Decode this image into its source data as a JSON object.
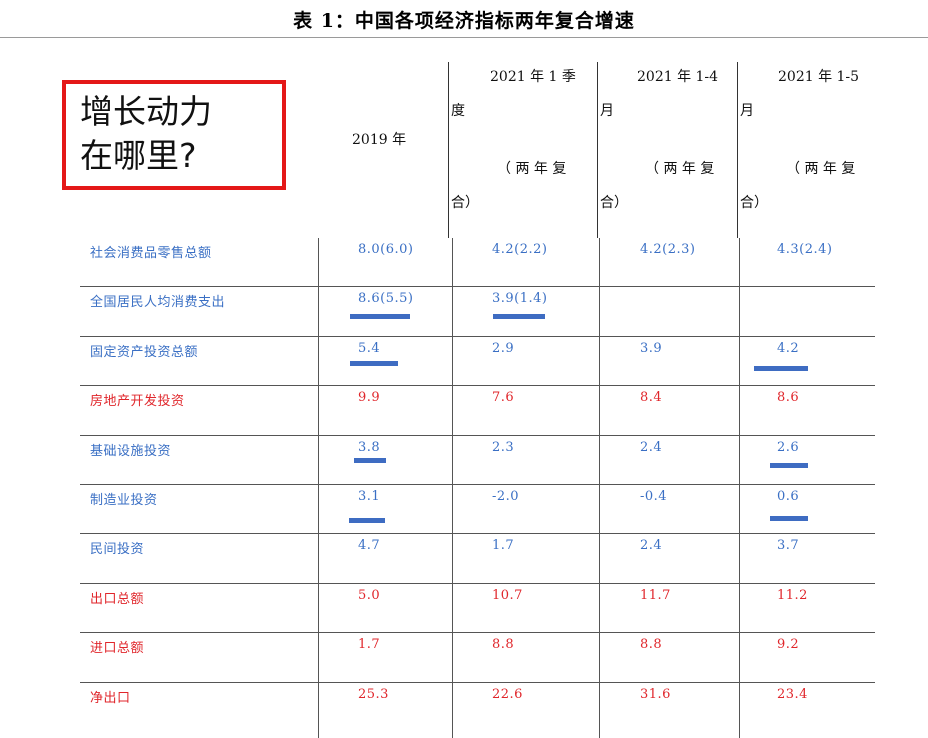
{
  "title": "表 1：中国各项经济指标两年复合增速",
  "callout": {
    "line1": "增长动力",
    "line2": "在哪里?"
  },
  "columns": {
    "c2019": "2019 年",
    "q1": {
      "l1": "2021 年 1 季",
      "l2": "度",
      "l3": "（ 两 年 复",
      "l4": "合）"
    },
    "m14": {
      "l1": "2021 年 1-4",
      "l2": "月",
      "l3": "（ 两 年 复",
      "l4": "合）"
    },
    "m15": {
      "l1": "2021 年 1-5",
      "l2": "月",
      "l3": "（ 两 年 复",
      "l4": "合）"
    }
  },
  "rows": [
    {
      "label": "社会消费品零售总额",
      "color": "#3a6fc4",
      "v2019": "8.0(6.0)",
      "q1": "4.2(2.2)",
      "m14": "4.2(2.3)",
      "m15": "4.3(2.4)"
    },
    {
      "label": "全国居民人均消费支出",
      "color": "#3a6fc4",
      "v2019": "8.6(5.5)",
      "q1": "3.9(1.4)",
      "m14": "",
      "m15": ""
    },
    {
      "label": "固定资产投资总额",
      "color": "#3a6fc4",
      "v2019": "5.4",
      "q1": "2.9",
      "m14": "3.9",
      "m15": "4.2"
    },
    {
      "label": "房地产开发投资",
      "color": "#e0262b",
      "v2019": "9.9",
      "q1": "7.6",
      "m14": "8.4",
      "m15": "8.6"
    },
    {
      "label": "基础设施投资",
      "color": "#3a6fc4",
      "v2019": "3.8",
      "q1": "2.3",
      "m14": "2.4",
      "m15": "2.6"
    },
    {
      "label": "制造业投资",
      "color": "#3a6fc4",
      "v2019": "3.1",
      "q1": "-2.0",
      "m14": "-0.4",
      "m15": "0.6"
    },
    {
      "label": "民间投资",
      "color": "#3a6fc4",
      "v2019": "4.7",
      "q1": "1.7",
      "m14": "2.4",
      "m15": "3.7"
    },
    {
      "label": "出口总额",
      "color": "#e0262b",
      "v2019": "5.0",
      "q1": "10.7",
      "m14": "11.7",
      "m15": "11.2"
    },
    {
      "label": "进口总额",
      "color": "#e0262b",
      "v2019": "1.7",
      "q1": "8.8",
      "m14": "8.8",
      "m15": "9.2"
    },
    {
      "label": "净出口",
      "color": "#e0262b",
      "v2019": "25.3",
      "q1": "22.6",
      "m14": "31.6",
      "m15": "23.4"
    }
  ],
  "accent_underline_color": "#3e6cc2",
  "callout_border_color": "#e41818"
}
